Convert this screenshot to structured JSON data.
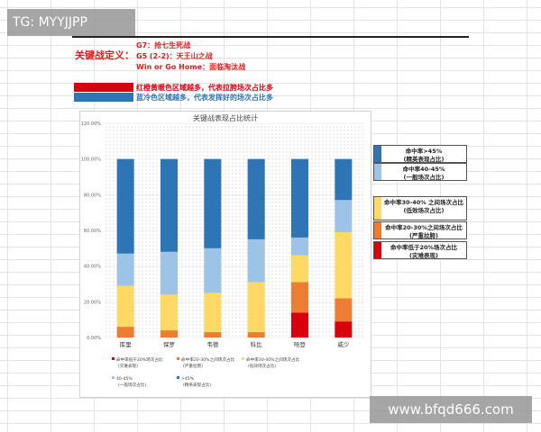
{
  "watermarks": {
    "top_left": "TG: MYYJJPP",
    "bottom_right": "www.bfqd666.com"
  },
  "definition": {
    "label": "关键战定义：",
    "lines": [
      "G7：抢七生死战",
      "G5 (2-2)：天王山之战",
      "Win or Go Home：面临淘汰战"
    ]
  },
  "color_notes": [
    {
      "text": "红橙黄暖色区域越多，代表拉胯场次占比多",
      "color": "#d9000d"
    },
    {
      "text": "蓝冷色区域越多，代表发挥好的场次占比多",
      "color": "#2e75b6"
    }
  ],
  "side_legend": [
    {
      "line1": "命中率>45%",
      "line2": "(精英表现占比)",
      "color": "#2e75b6"
    },
    {
      "line1": "命中率40-45%",
      "line2": "(一般场次占比)",
      "color": "#9dc3e6"
    },
    {
      "line1": "命中率30-40% 之间场次占比",
      "line2": "(低效场次占比)",
      "color": "#ffd966"
    },
    {
      "line1": "命中率20-30%之间场次占比",
      "line2": "(严重拉胯)",
      "color": "#ed7d31"
    },
    {
      "line1": "命中率低于20%场次占比",
      "line2": "(灾难表现)",
      "color": "#d9000d"
    }
  ],
  "chart_data": {
    "type": "bar",
    "stacked": true,
    "title": "关键战表现占比统计",
    "ylim": [
      0,
      1.2
    ],
    "yticks": [
      "0.00%",
      "20.00%",
      "40.00%",
      "60.00%",
      "80.00%",
      "100.00%",
      "120.00%"
    ],
    "categories": [
      "库里",
      "保罗",
      "韦德",
      "科比",
      "哈登",
      "威少"
    ],
    "series": [
      {
        "key": "s1",
        "color": "#d9000d",
        "values": [
          0,
          0,
          0,
          0,
          0.14,
          0.09
        ]
      },
      {
        "key": "s2",
        "color": "#ed7d31",
        "values": [
          0.06,
          0.04,
          0.03,
          0.03,
          0.17,
          0.13
        ]
      },
      {
        "key": "s3",
        "color": "#ffd966",
        "values": [
          0.23,
          0.2,
          0.22,
          0.28,
          0.15,
          0.37
        ]
      },
      {
        "key": "s4",
        "color": "#9dc3e6",
        "values": [
          0.18,
          0.24,
          0.25,
          0.24,
          0.1,
          0.18
        ]
      },
      {
        "key": "s5",
        "color": "#2e75b6",
        "values": [
          0.53,
          0.52,
          0.5,
          0.45,
          0.44,
          0.23
        ]
      }
    ],
    "legend": [
      {
        "line1": "■命中率低于20%场次占比",
        "line2": "(灾难表现)"
      },
      {
        "line1": "■命中率20-30%之间场次占比",
        "line2": "(严重拉胯)"
      },
      {
        "line1": "■命中率30-40%之间场次占比",
        "line2": "(低效场次占比)"
      },
      {
        "line1": "■40-45%",
        "line2": "(一般场次占比)"
      },
      {
        "line1": "■>45%",
        "line2": "(精英表现占比)"
      }
    ]
  }
}
